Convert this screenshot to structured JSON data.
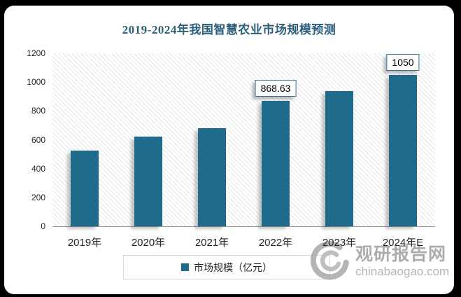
{
  "title": "2019-2024年我国智慧农业市场规模预测",
  "chart_data": {
    "type": "bar",
    "title": "2019-2024年我国智慧农业市场规模预测",
    "categories": [
      "2019年",
      "2020年",
      "2021年",
      "2022年",
      "2023年",
      "2024年E"
    ],
    "series": [
      {
        "name": "市场规模（亿元）",
        "values": [
          525,
          620,
          680,
          868.63,
          940,
          1050
        ]
      }
    ],
    "data_labels": {
      "3": "868.63",
      "5": "1050"
    },
    "yticks": [
      0,
      200,
      400,
      600,
      800,
      1000,
      1200
    ],
    "ylim": [
      0,
      1200
    ],
    "xlabel": "",
    "ylabel": "",
    "grid": false,
    "legend_position": "bottom",
    "plot_background": "light-downward-diagonal-hatch",
    "bar_color": "#1F6B8C"
  },
  "legend": {
    "label": "市场规模（亿元）",
    "marker_color": "#1F6B8C"
  },
  "watermark": {
    "name": "观研报告网",
    "domain": "chinabaogao.com"
  },
  "colors": {
    "title": "#2E5F7A",
    "bar": "#1F6B8C",
    "axis_line": "#9a9a9a",
    "text": "#262626",
    "card_bg": "#ffffff",
    "page_bg": "#000000"
  }
}
